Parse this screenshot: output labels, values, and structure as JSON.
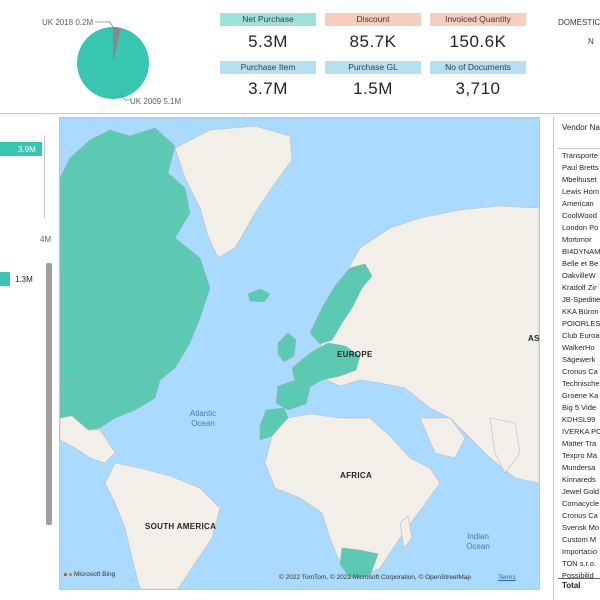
{
  "pie": {
    "label_top": "UK 2018 0.2M",
    "label_bottom": "UK 2009 5.1M",
    "slices": [
      {
        "name": "UK 2009",
        "value": 5.1,
        "color": "#39c6b0"
      },
      {
        "name": "UK 2018",
        "value": 0.2,
        "color": "#8a8886"
      }
    ]
  },
  "kpis": [
    {
      "label": "Net Purchase",
      "value": "5.3M",
      "color": "#9fe3d8"
    },
    {
      "label": "Discount",
      "value": "85.7K",
      "color": "#f7cdbd"
    },
    {
      "label": "Invoiced Quantity",
      "value": "150.6K",
      "color": "#f7cdbd"
    },
    {
      "label": "Purchase Item",
      "value": "3.7M",
      "color": "#b5dff2"
    },
    {
      "label": "Purchase GL",
      "value": "1.5M",
      "color": "#b5dff2"
    },
    {
      "label": "No of Documents",
      "value": "3,710",
      "color": "#b5dff2"
    }
  ],
  "domestic": {
    "label": "DOMESTIC",
    "sub": "N"
  },
  "left_chart": {
    "bar1_label": "3.9M",
    "axis_label": "4M",
    "bar2_label": "1.3M",
    "accent": "#39c6b0"
  },
  "map": {
    "region_labels": [
      "EUROPE",
      "AFRICA",
      "SOUTH AMERICA",
      "AS"
    ],
    "ocean_atlantic": [
      "Atlantic",
      "Ocean"
    ],
    "ocean_indian": [
      "Indian",
      "Ocean"
    ],
    "bing": "Microsoft Bing",
    "copyright": "© 2022 TomTom, © 2022 Microsoft Corporation, © OpenStreetMap",
    "terms": "Terms",
    "highlight_color": "#5cc9b3",
    "land_color": "#f2efe9",
    "water_color": "#aadaff"
  },
  "table": {
    "header": "Vendor Na",
    "rows": [
      "Transporte",
      "Paul Bretts",
      "Mbelhuset",
      "Lewis Hom",
      "American",
      "CoolWood",
      "London Po",
      "Mortimor",
      "BI4DYNAM",
      "Belle et Be",
      "OakvilleW",
      "Kradolf Zir",
      "JB-Speditie",
      "KKA Büron",
      "POIORLES",
      "Club Euroa",
      "WalkerHo",
      "Sägewerk",
      "Cronus Ca",
      "Technische",
      "Groene Ka",
      "Big 5 Vide",
      "KDHSL99",
      "IVERKA PO",
      "Matter Tra",
      "Texpro Ma",
      "Mundersa",
      "Kinnareds",
      "Jewel Gold",
      "Comacycle",
      "Cronus Ca",
      "Svensk Mo",
      "Custom M",
      "Importacio",
      "TON s.r.o.",
      "Possibilid"
    ],
    "total": "Total"
  }
}
